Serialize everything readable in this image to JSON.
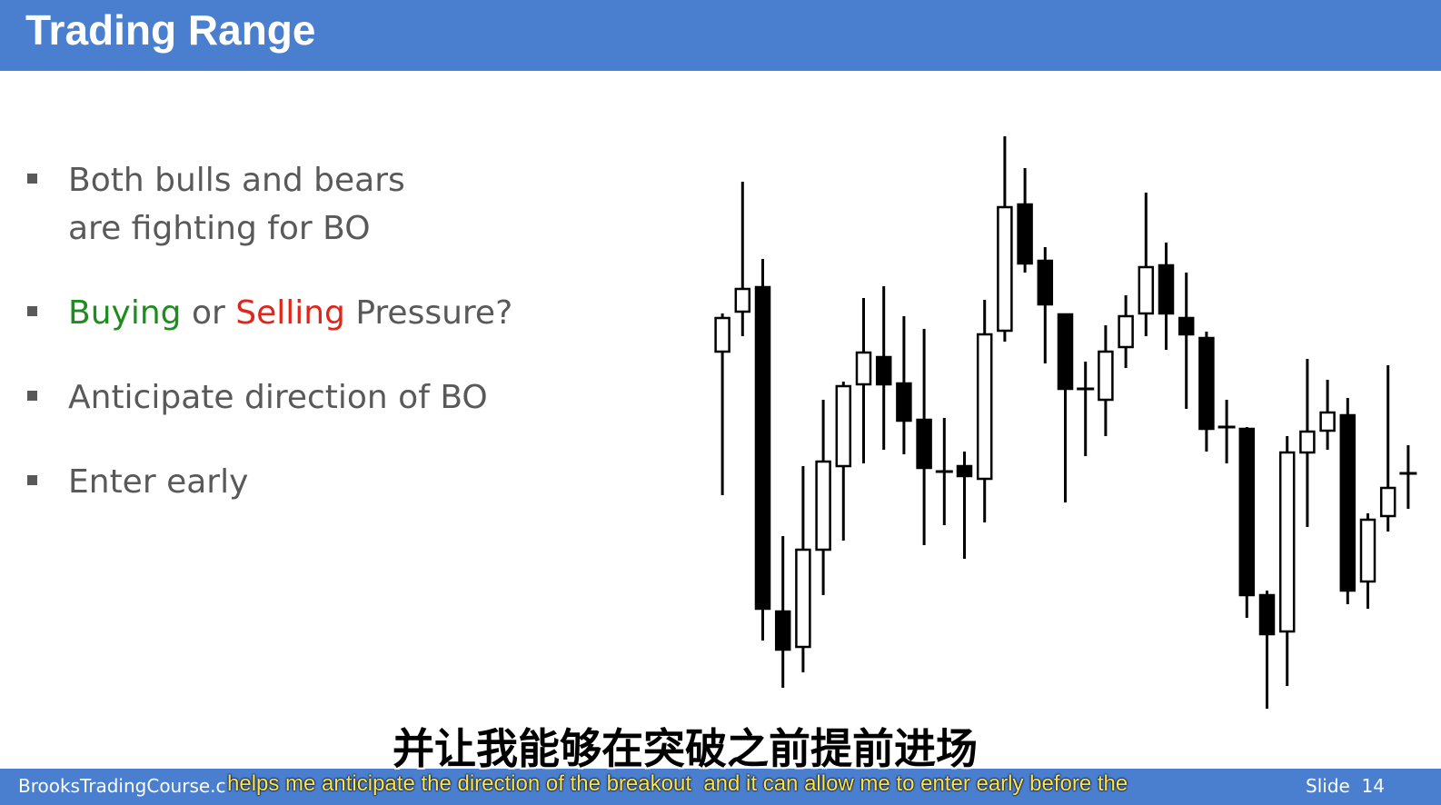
{
  "header": {
    "title": "Trading Range"
  },
  "bullets": [
    {
      "lines": [
        "Both bulls and bears",
        "are fighting for BO"
      ]
    },
    {
      "parts": [
        "Buying",
        " or ",
        "Selling",
        " Pressure?"
      ]
    },
    {
      "lines": [
        "Anticipate direction of BO"
      ]
    },
    {
      "lines": [
        "Enter early"
      ]
    }
  ],
  "chart_data": {
    "type": "candlestick",
    "open": [
      413,
      457,
      484,
      127,
      88,
      195,
      287,
      377,
      407,
      378,
      338,
      281,
      287,
      273,
      436,
      575,
      513,
      454,
      372,
      360,
      418,
      455,
      508,
      450,
      428,
      330,
      328,
      145,
      105,
      302,
      326,
      343,
      160,
      232,
      279
    ],
    "high": [
      455,
      600,
      515,
      210,
      287,
      360,
      380,
      472,
      485,
      452,
      438,
      340,
      303,
      470,
      650,
      615,
      528,
      455,
      402,
      442,
      475,
      588,
      533,
      500,
      435,
      360,
      330,
      150,
      320,
      405,
      382,
      362,
      235,
      398,
      310
    ],
    "low": [
      255,
      430,
      95,
      43,
      60,
      145,
      205,
      290,
      305,
      300,
      200,
      222,
      185,
      225,
      424,
      500,
      400,
      247,
      298,
      320,
      395,
      430,
      415,
      350,
      303,
      290,
      120,
      20,
      45,
      220,
      305,
      135,
      130,
      215,
      240
    ],
    "close": [
      450,
      482,
      130,
      85,
      195,
      292,
      375,
      412,
      377,
      337,
      285,
      281,
      276,
      432,
      572,
      510,
      465,
      372,
      372,
      413,
      452,
      506,
      455,
      432,
      328,
      330,
      145,
      102,
      302,
      325,
      346,
      150,
      228,
      263,
      279
    ],
    "ylim": [
      0,
      700
    ]
  },
  "footer": {
    "site": "BrooksTradingCourse.c",
    "slide": "Slide  14"
  },
  "subtitles": {
    "zh": "并让我能够在突破之前提前进场",
    "en": "helps me anticipate the direction of the breakout  and it can allow me to enter early before the"
  }
}
